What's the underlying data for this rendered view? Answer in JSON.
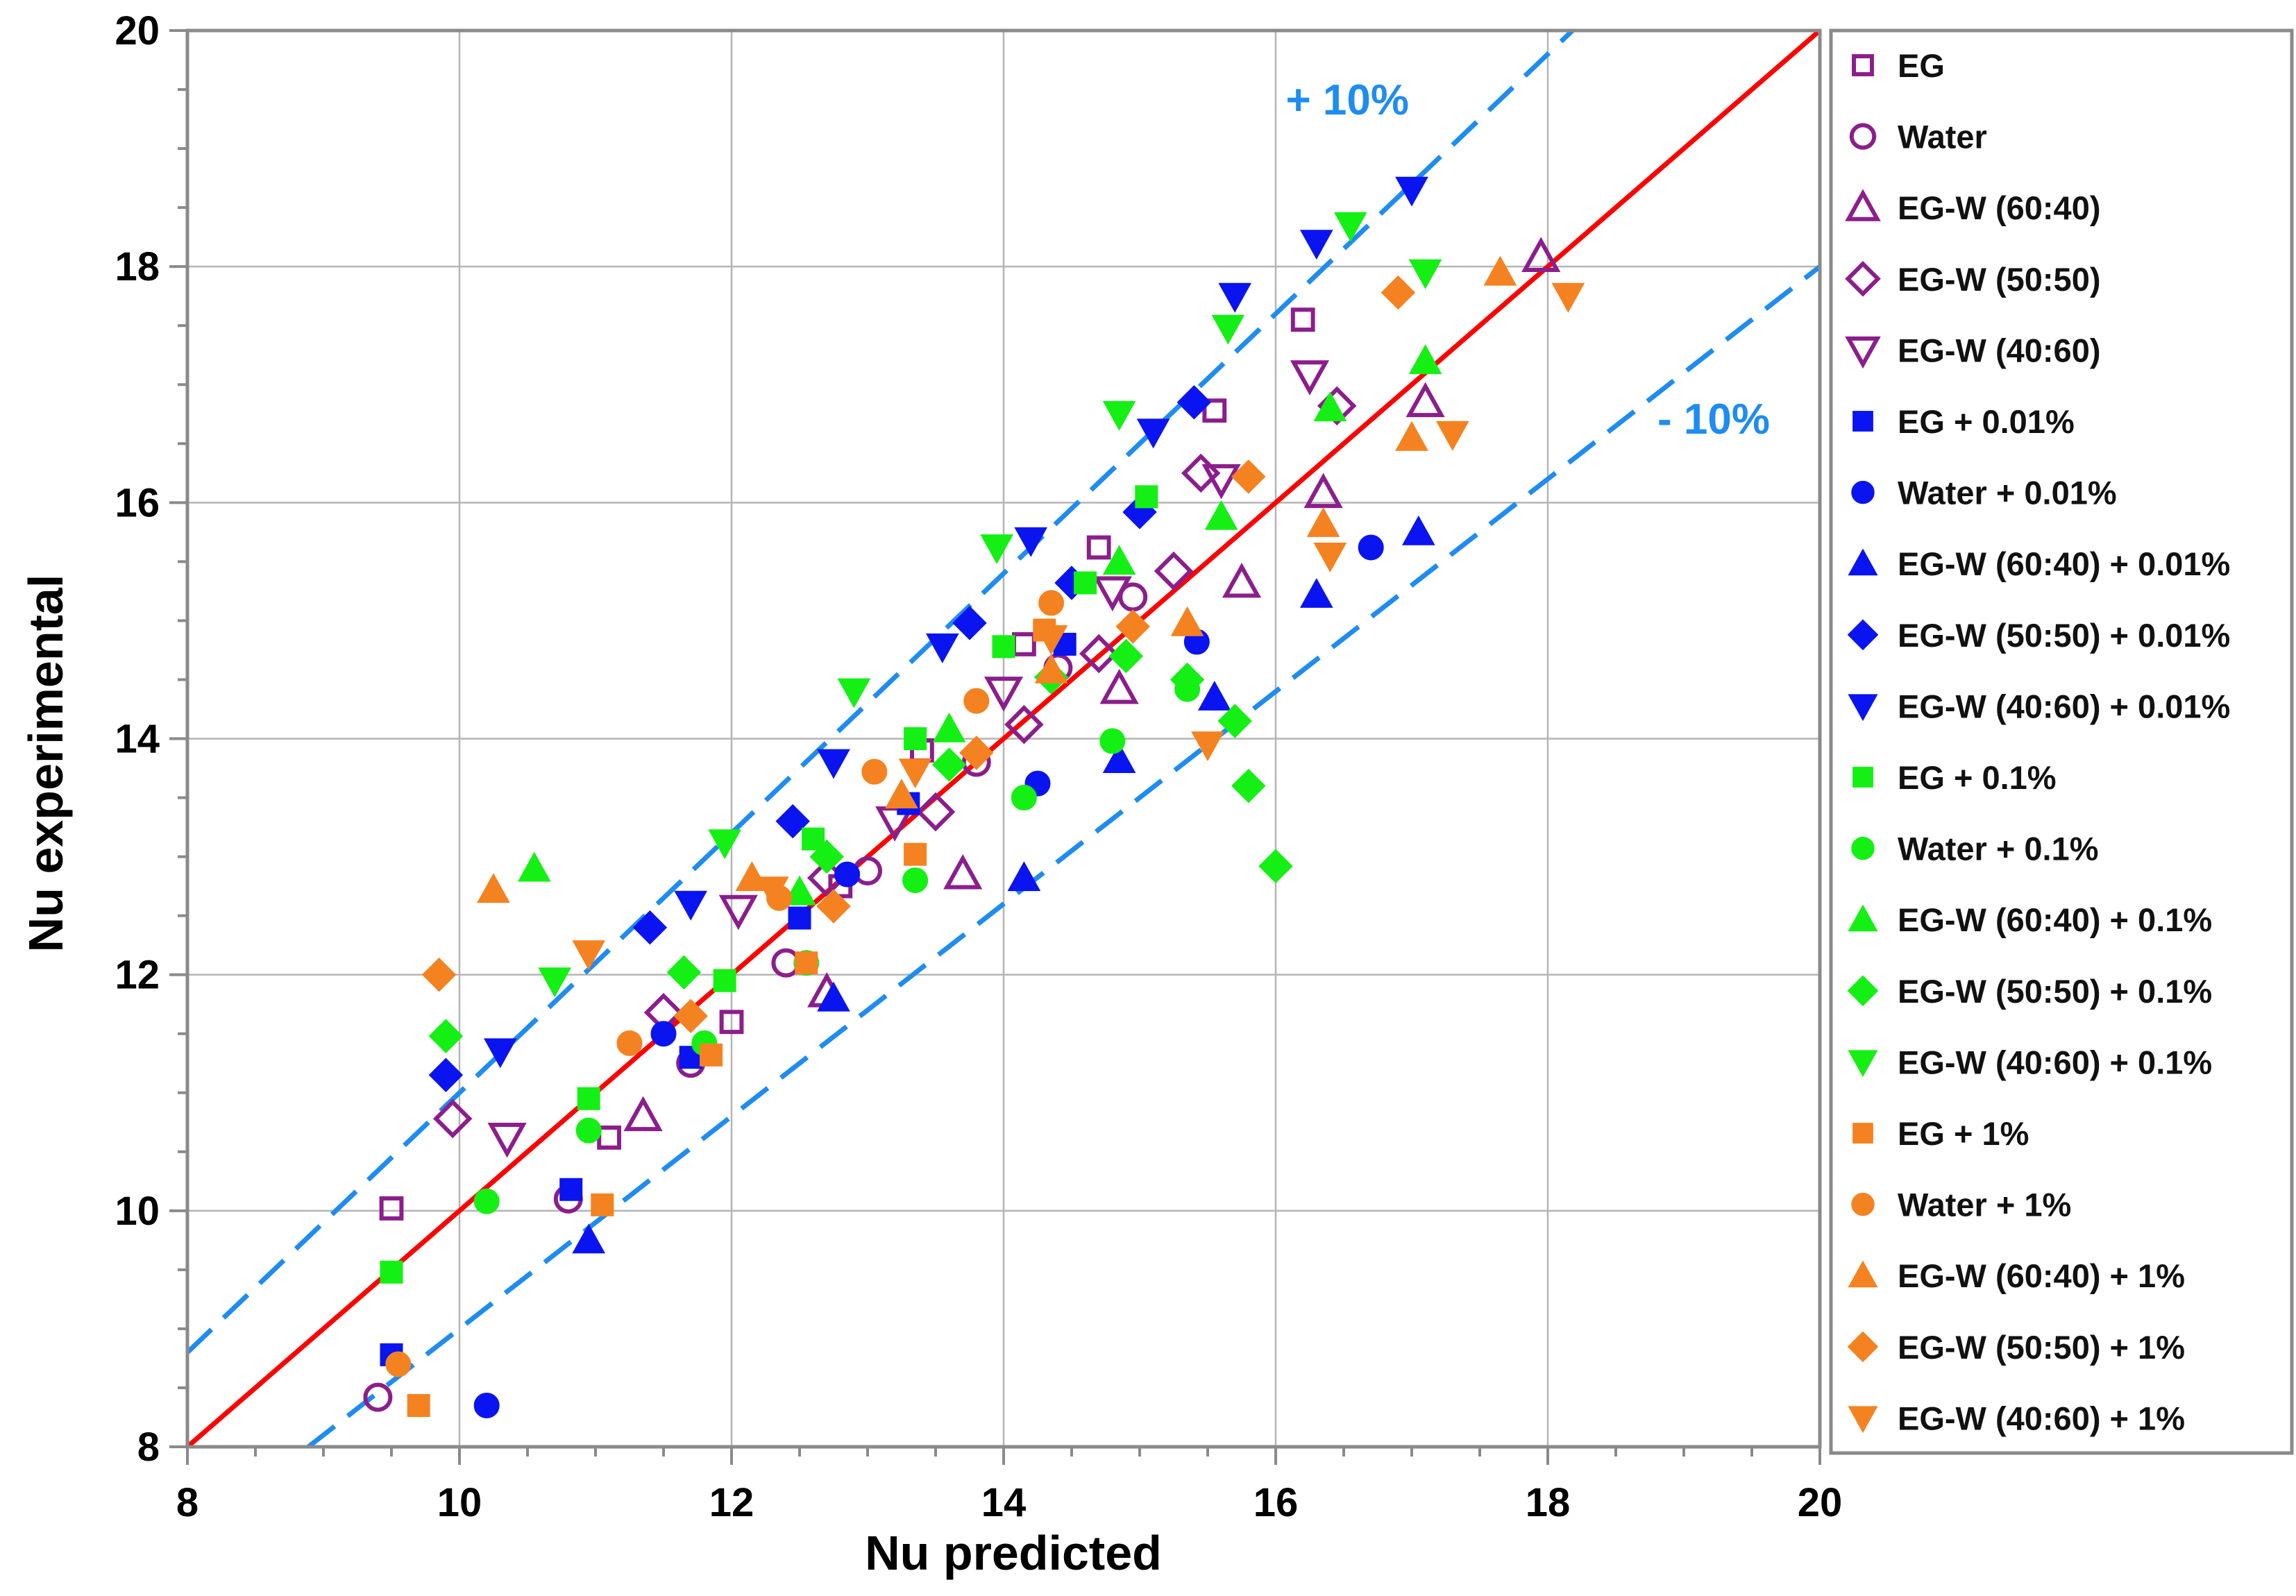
{
  "chart_data": {
    "type": "scatter",
    "title": "",
    "xlabel": "Nu predicted",
    "ylabel": "Nu experimental",
    "xlim": [
      8,
      20
    ],
    "ylim": [
      8,
      20
    ],
    "xticks": [
      "8",
      "10",
      "12",
      "14",
      "16",
      "18",
      "20"
    ],
    "yticks": [
      "8",
      "10",
      "12",
      "14",
      "16",
      "18",
      "20"
    ],
    "grid": true,
    "legend_position": "right",
    "reference_lines": [
      {
        "name": "y = x",
        "slope": 1.0,
        "color": "#ff0000",
        "style": "solid"
      },
      {
        "name": "+10%",
        "slope": 1.1,
        "color": "#1e8cf0",
        "style": "dashed",
        "label": "+ 10%"
      },
      {
        "name": "-10%",
        "slope": 0.9,
        "color": "#1e8cf0",
        "style": "dashed",
        "label": "- 10%"
      }
    ],
    "series": [
      {
        "name": "EG",
        "marker": "square",
        "filled": false,
        "color": "#8c1e8c",
        "points": [
          [
            9.5,
            10.02
          ],
          [
            11.1,
            10.62
          ],
          [
            12.0,
            11.6
          ],
          [
            12.8,
            12.75
          ],
          [
            13.4,
            13.9
          ],
          [
            14.15,
            14.8
          ],
          [
            14.7,
            15.62
          ],
          [
            15.55,
            16.78
          ],
          [
            16.2,
            17.55
          ]
        ]
      },
      {
        "name": "Water",
        "marker": "circle",
        "filled": false,
        "color": "#8c1e8c",
        "points": [
          [
            9.4,
            8.42
          ],
          [
            10.8,
            10.1
          ],
          [
            11.7,
            11.25
          ],
          [
            12.4,
            12.1
          ],
          [
            13.0,
            12.88
          ],
          [
            13.8,
            13.8
          ],
          [
            14.4,
            14.6
          ],
          [
            14.95,
            15.2
          ]
        ]
      },
      {
        "name": "EG-W (60:40)",
        "marker": "triangle-up",
        "filled": false,
        "color": "#8c1e8c",
        "points": [
          [
            11.35,
            10.8
          ],
          [
            12.7,
            11.85
          ],
          [
            13.7,
            12.85
          ],
          [
            14.85,
            14.42
          ],
          [
            15.75,
            15.32
          ],
          [
            16.35,
            16.08
          ],
          [
            17.1,
            16.85
          ],
          [
            17.95,
            18.08
          ]
        ]
      },
      {
        "name": "EG-W (50:50)",
        "marker": "diamond",
        "filled": false,
        "color": "#8c1e8c",
        "points": [
          [
            9.95,
            10.78
          ],
          [
            11.5,
            11.68
          ],
          [
            12.7,
            12.82
          ],
          [
            13.5,
            13.38
          ],
          [
            14.15,
            14.12
          ],
          [
            14.7,
            14.72
          ],
          [
            15.25,
            15.42
          ],
          [
            15.45,
            16.25
          ],
          [
            16.45,
            16.82
          ]
        ]
      },
      {
        "name": "EG-W (40:60)",
        "marker": "triangle-down",
        "filled": false,
        "color": "#8c1e8c",
        "points": [
          [
            10.35,
            10.62
          ],
          [
            12.05,
            12.55
          ],
          [
            13.2,
            13.3
          ],
          [
            14.0,
            14.4
          ],
          [
            14.8,
            15.25
          ],
          [
            15.6,
            16.2
          ],
          [
            16.25,
            17.08
          ]
        ]
      },
      {
        "name": "EG + 0.01%",
        "marker": "square",
        "filled": true,
        "color": "#0a14f0",
        "points": [
          [
            9.5,
            8.78
          ],
          [
            10.82,
            10.18
          ],
          [
            11.7,
            11.3
          ],
          [
            12.5,
            12.48
          ],
          [
            13.3,
            13.45
          ],
          [
            14.45,
            14.8
          ]
        ]
      },
      {
        "name": "Water + 0.01%",
        "marker": "circle",
        "filled": true,
        "color": "#0a14f0",
        "points": [
          [
            10.2,
            8.35
          ],
          [
            11.5,
            11.5
          ],
          [
            12.85,
            12.85
          ],
          [
            14.25,
            13.62
          ],
          [
            15.42,
            14.82
          ],
          [
            16.7,
            15.62
          ]
        ]
      },
      {
        "name": "EG-W (60:40) + 0.01%",
        "marker": "triangle-up",
        "filled": true,
        "color": "#0a14f0",
        "points": [
          [
            10.95,
            9.75
          ],
          [
            12.75,
            11.8
          ],
          [
            14.15,
            12.82
          ],
          [
            14.85,
            13.82
          ],
          [
            15.55,
            14.35
          ],
          [
            16.3,
            15.22
          ],
          [
            17.05,
            15.75
          ]
        ]
      },
      {
        "name": "EG-W (50:50) + 0.01%",
        "marker": "diamond",
        "filled": true,
        "color": "#0a14f0",
        "points": [
          [
            9.9,
            11.15
          ],
          [
            11.4,
            12.4
          ],
          [
            12.45,
            13.3
          ],
          [
            13.75,
            14.98
          ],
          [
            14.5,
            15.32
          ],
          [
            15.0,
            15.92
          ],
          [
            15.4,
            16.85
          ]
        ]
      },
      {
        "name": "EG-W (40:60) + 0.01%",
        "marker": "triangle-down",
        "filled": true,
        "color": "#0a14f0",
        "points": [
          [
            10.3,
            11.35
          ],
          [
            11.7,
            12.6
          ],
          [
            12.75,
            13.8
          ],
          [
            13.55,
            14.78
          ],
          [
            14.2,
            15.68
          ],
          [
            15.1,
            16.6
          ],
          [
            15.7,
            17.75
          ],
          [
            16.3,
            18.2
          ],
          [
            17.0,
            18.65
          ]
        ]
      },
      {
        "name": "EG + 0.1%",
        "marker": "square",
        "filled": true,
        "color": "#14f014",
        "points": [
          [
            9.5,
            9.48
          ],
          [
            10.95,
            10.95
          ],
          [
            11.95,
            11.95
          ],
          [
            12.6,
            13.15
          ],
          [
            13.35,
            14.0
          ],
          [
            14.0,
            14.78
          ],
          [
            14.6,
            15.32
          ],
          [
            15.05,
            16.05
          ]
        ]
      },
      {
        "name": "Water + 0.1%",
        "marker": "circle",
        "filled": true,
        "color": "#14f014",
        "points": [
          [
            10.2,
            10.08
          ],
          [
            10.95,
            10.68
          ],
          [
            11.8,
            11.42
          ],
          [
            12.55,
            12.1
          ],
          [
            13.35,
            12.8
          ],
          [
            14.15,
            13.5
          ],
          [
            14.8,
            13.98
          ],
          [
            15.35,
            14.42
          ]
        ]
      },
      {
        "name": "EG-W (60:40) + 0.1%",
        "marker": "triangle-up",
        "filled": true,
        "color": "#14f014",
        "points": [
          [
            10.55,
            12.9
          ],
          [
            12.5,
            12.7
          ],
          [
            13.6,
            14.08
          ],
          [
            14.85,
            15.5
          ],
          [
            15.6,
            15.88
          ],
          [
            16.4,
            16.8
          ],
          [
            17.1,
            17.2
          ]
        ]
      },
      {
        "name": "EG-W (50:50) + 0.1%",
        "marker": "diamond",
        "filled": true,
        "color": "#14f014",
        "points": [
          [
            9.9,
            11.48
          ],
          [
            11.65,
            12.02
          ],
          [
            12.7,
            13.0
          ],
          [
            13.6,
            13.78
          ],
          [
            14.35,
            14.52
          ],
          [
            14.9,
            14.7
          ],
          [
            15.35,
            14.5
          ],
          [
            15.7,
            14.15
          ],
          [
            15.8,
            13.6
          ],
          [
            16.0,
            12.92
          ]
        ]
      },
      {
        "name": "EG-W (40:60) + 0.1%",
        "marker": "triangle-down",
        "filled": true,
        "color": "#14f014",
        "points": [
          [
            10.7,
            11.95
          ],
          [
            11.95,
            13.12
          ],
          [
            12.9,
            14.4
          ],
          [
            13.95,
            15.62
          ],
          [
            14.85,
            16.75
          ],
          [
            15.65,
            17.48
          ],
          [
            16.55,
            18.35
          ],
          [
            17.1,
            17.95
          ]
        ]
      },
      {
        "name": "EG + 1%",
        "marker": "square",
        "filled": true,
        "color": "#f58220",
        "points": [
          [
            9.7,
            8.35
          ],
          [
            11.05,
            10.05
          ],
          [
            11.85,
            11.32
          ],
          [
            12.55,
            12.1
          ],
          [
            13.35,
            13.02
          ],
          [
            14.3,
            14.92
          ]
        ]
      },
      {
        "name": "Water + 1%",
        "marker": "circle",
        "filled": true,
        "color": "#f58220",
        "points": [
          [
            9.55,
            8.7
          ],
          [
            11.25,
            11.42
          ],
          [
            12.35,
            12.65
          ],
          [
            13.05,
            13.72
          ],
          [
            13.8,
            14.32
          ],
          [
            14.35,
            15.15
          ]
        ]
      },
      {
        "name": "EG-W (60:40) + 1%",
        "marker": "triangle-up",
        "filled": true,
        "color": "#f58220",
        "points": [
          [
            10.25,
            12.72
          ],
          [
            12.15,
            12.82
          ],
          [
            13.25,
            13.52
          ],
          [
            14.35,
            14.58
          ],
          [
            15.35,
            14.98
          ],
          [
            16.35,
            15.82
          ],
          [
            17.0,
            16.55
          ],
          [
            17.65,
            17.95
          ]
        ]
      },
      {
        "name": "EG-W (50:50) + 1%",
        "marker": "diamond",
        "filled": true,
        "color": "#f58220",
        "points": [
          [
            9.85,
            12.0
          ],
          [
            11.7,
            11.65
          ],
          [
            12.75,
            12.58
          ],
          [
            13.8,
            13.88
          ],
          [
            14.95,
            14.95
          ],
          [
            15.8,
            16.22
          ],
          [
            16.9,
            17.78
          ]
        ]
      },
      {
        "name": "EG-W (40:60) + 1%",
        "marker": "triangle-down",
        "filled": true,
        "color": "#f58220",
        "points": [
          [
            10.95,
            12.18
          ],
          [
            12.3,
            12.72
          ],
          [
            13.35,
            13.72
          ],
          [
            14.35,
            14.85
          ],
          [
            15.5,
            13.95
          ],
          [
            16.4,
            15.55
          ],
          [
            17.3,
            16.58
          ],
          [
            18.15,
            17.75
          ]
        ]
      }
    ]
  }
}
